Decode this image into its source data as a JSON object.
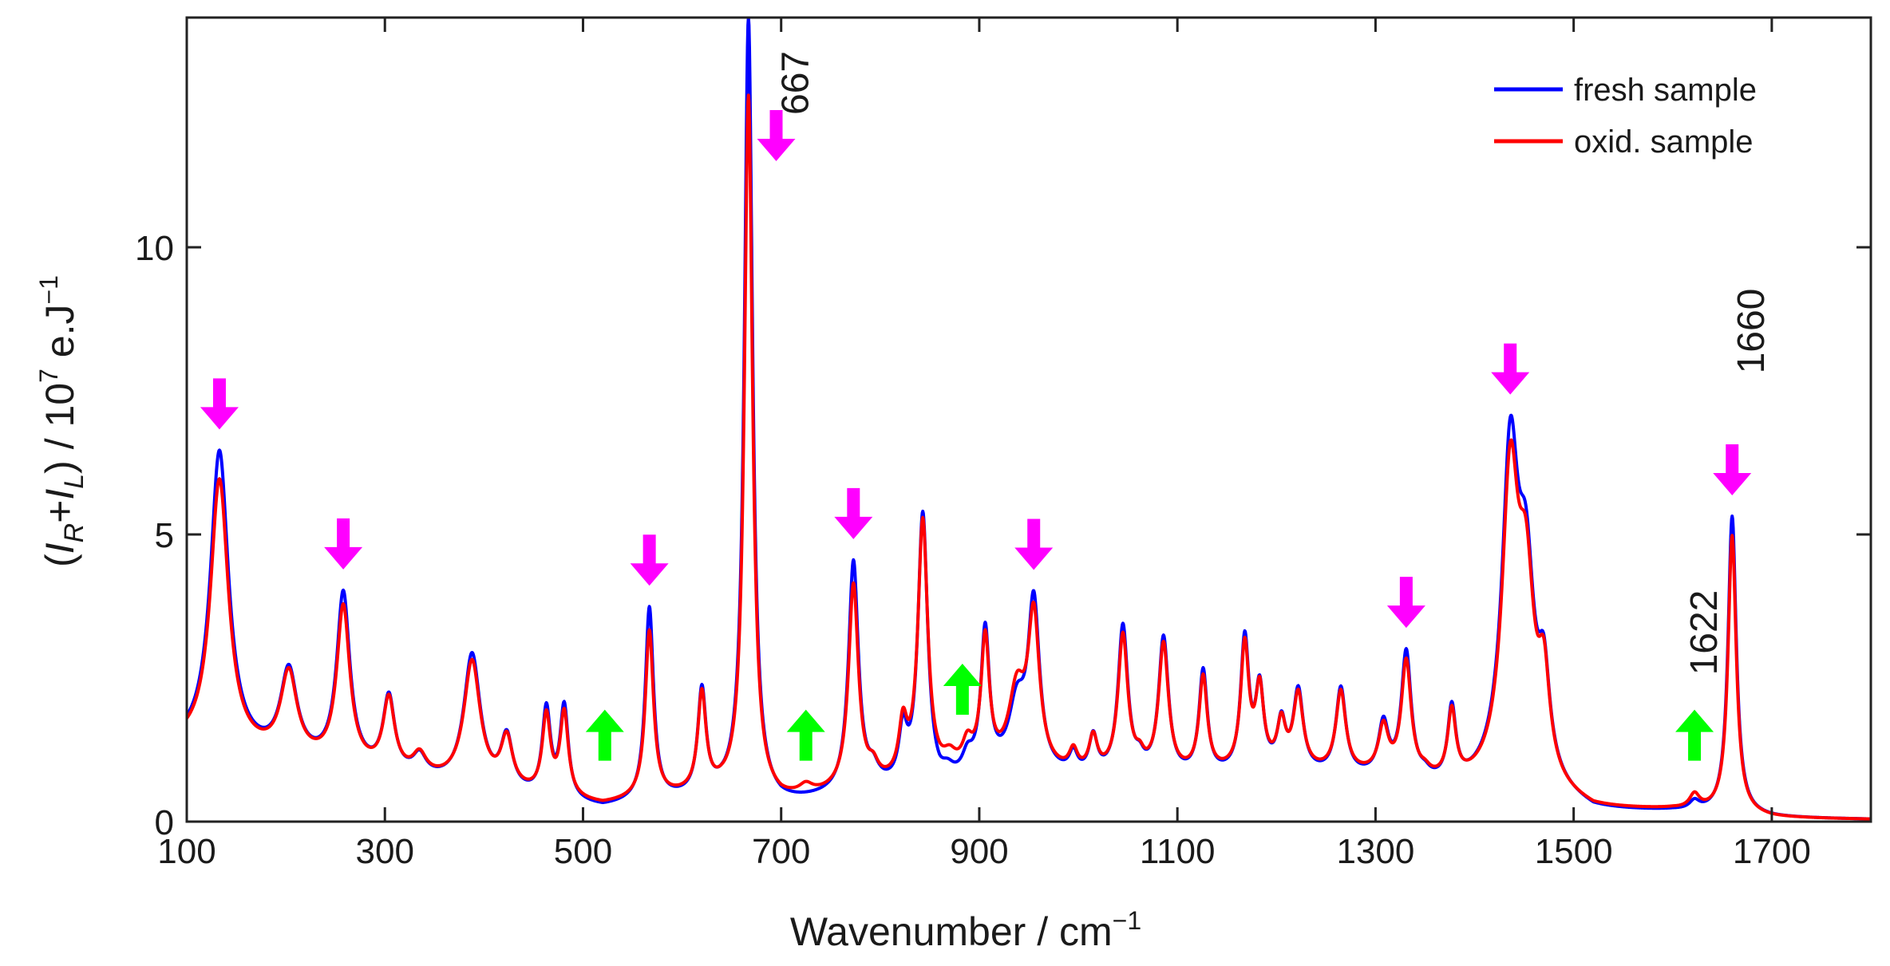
{
  "chart_data": {
    "type": "line",
    "title": "",
    "xlabel": "Wavenumber / cm",
    "xlabel_sup": "−1",
    "ylabel_parts": {
      "open": "(",
      "I": "I",
      "R": "R",
      "plus": "+",
      "I2": "I",
      "L": "L",
      "rest": ") / 10",
      "pow": "7",
      "unit": " e.J",
      "unit_sup": "−1"
    },
    "xlim": [
      100,
      1800
    ],
    "ylim": [
      0,
      14
    ],
    "xticks": [
      100,
      300,
      500,
      700,
      900,
      1100,
      1300,
      1500,
      1700
    ],
    "yticks": [
      0,
      5,
      10
    ],
    "grid": false,
    "legend_position": "top-right",
    "baseline": {
      "fresh": [
        [
          100,
          1.3
        ],
        [
          500,
          0.25
        ],
        [
          520,
          0.2
        ],
        [
          560,
          0.3
        ],
        [
          600,
          0.35
        ],
        [
          640,
          0.4
        ],
        [
          700,
          0.25
        ],
        [
          800,
          0.5
        ],
        [
          860,
          0.4
        ],
        [
          900,
          0.8
        ],
        [
          1000,
          0.7
        ],
        [
          1100,
          0.7
        ],
        [
          1200,
          0.8
        ],
        [
          1300,
          0.7
        ],
        [
          1380,
          0.5
        ],
        [
          1420,
          0.6
        ],
        [
          1480,
          0.4
        ],
        [
          1520,
          0.15
        ],
        [
          1600,
          0.15
        ],
        [
          1700,
          0.05
        ],
        [
          1800,
          0.03
        ]
      ],
      "oxid": [
        [
          100,
          1.3
        ],
        [
          500,
          0.3
        ],
        [
          520,
          0.25
        ],
        [
          560,
          0.35
        ],
        [
          600,
          0.4
        ],
        [
          640,
          0.45
        ],
        [
          700,
          0.3
        ],
        [
          800,
          0.55
        ],
        [
          860,
          0.65
        ],
        [
          900,
          0.85
        ],
        [
          1000,
          0.75
        ],
        [
          1100,
          0.75
        ],
        [
          1200,
          0.85
        ],
        [
          1300,
          0.75
        ],
        [
          1380,
          0.55
        ],
        [
          1420,
          0.6
        ],
        [
          1480,
          0.4
        ],
        [
          1520,
          0.18
        ],
        [
          1600,
          0.18
        ],
        [
          1700,
          0.05
        ],
        [
          1800,
          0.03
        ]
      ]
    },
    "series": [
      {
        "name": "fresh sample",
        "color": "#0000ff",
        "peaks": [
          [
            133,
            5.2,
            11
          ],
          [
            203,
            1.5,
            10
          ],
          [
            258,
            3.0,
            8
          ],
          [
            304,
            1.3,
            7
          ],
          [
            335,
            0.35,
            8
          ],
          [
            388,
            2.3,
            10
          ],
          [
            423,
            0.9,
            7
          ],
          [
            463,
            1.5,
            5
          ],
          [
            481,
            1.6,
            5
          ],
          [
            567,
            3.35,
            5
          ],
          [
            620,
            1.8,
            5
          ],
          [
            667,
            13.6,
            5
          ],
          [
            773,
            4.0,
            6
          ],
          [
            793,
            0.25,
            6
          ],
          [
            823,
            0.9,
            5
          ],
          [
            843,
            4.8,
            6
          ],
          [
            868,
            0.2,
            8
          ],
          [
            888,
            0.3,
            6
          ],
          [
            906,
            2.4,
            5
          ],
          [
            938,
            1.1,
            10
          ],
          [
            955,
            2.9,
            7
          ],
          [
            995,
            0.35,
            5
          ],
          [
            1015,
            0.65,
            5
          ],
          [
            1045,
            2.6,
            6
          ],
          [
            1062,
            0.2,
            5
          ],
          [
            1086,
            2.4,
            6
          ],
          [
            1126,
            1.8,
            5
          ],
          [
            1168,
            2.3,
            5
          ],
          [
            1183,
            1.4,
            5
          ],
          [
            1205,
            0.8,
            5
          ],
          [
            1222,
            1.4,
            6
          ],
          [
            1265,
            1.5,
            6
          ],
          [
            1308,
            0.9,
            6
          ],
          [
            1331,
            2.2,
            6
          ],
          [
            1350,
            0.1,
            6
          ],
          [
            1377,
            1.3,
            5
          ],
          [
            1436,
            5.5,
            10
          ],
          [
            1452,
            3.2,
            10
          ],
          [
            1470,
            1.6,
            7
          ],
          [
            1622,
            0.15,
            6
          ],
          [
            1660,
            5.2,
            5
          ]
        ]
      },
      {
        "name": "oxid. sample",
        "color": "#ff0000",
        "peaks": [
          [
            133,
            4.7,
            11
          ],
          [
            203,
            1.45,
            10
          ],
          [
            258,
            2.75,
            8
          ],
          [
            304,
            1.25,
            7
          ],
          [
            335,
            0.35,
            8
          ],
          [
            388,
            2.15,
            10
          ],
          [
            423,
            0.85,
            7
          ],
          [
            463,
            1.35,
            5
          ],
          [
            481,
            1.45,
            5
          ],
          [
            567,
            2.9,
            5
          ],
          [
            620,
            1.7,
            5
          ],
          [
            667,
            12.2,
            5
          ],
          [
            725,
            0.15,
            8
          ],
          [
            773,
            3.55,
            6
          ],
          [
            793,
            0.25,
            6
          ],
          [
            823,
            0.9,
            5
          ],
          [
            843,
            4.5,
            6
          ],
          [
            870,
            0.25,
            8
          ],
          [
            888,
            0.4,
            6
          ],
          [
            906,
            2.2,
            5
          ],
          [
            938,
            1.3,
            10
          ],
          [
            955,
            2.6,
            7
          ],
          [
            995,
            0.35,
            5
          ],
          [
            1015,
            0.6,
            5
          ],
          [
            1045,
            2.4,
            6
          ],
          [
            1062,
            0.2,
            5
          ],
          [
            1086,
            2.25,
            6
          ],
          [
            1126,
            1.65,
            5
          ],
          [
            1168,
            2.15,
            5
          ],
          [
            1183,
            1.35,
            5
          ],
          [
            1205,
            0.75,
            5
          ],
          [
            1222,
            1.3,
            6
          ],
          [
            1265,
            1.4,
            6
          ],
          [
            1308,
            0.8,
            6
          ],
          [
            1331,
            2.0,
            6
          ],
          [
            1350,
            0.1,
            6
          ],
          [
            1377,
            1.2,
            5
          ],
          [
            1436,
            5.1,
            10
          ],
          [
            1452,
            3.1,
            10
          ],
          [
            1470,
            1.6,
            7
          ],
          [
            1622,
            0.25,
            6
          ],
          [
            1660,
            4.85,
            5
          ]
        ]
      }
    ],
    "arrows": [
      {
        "x": 133,
        "direction": "down",
        "color": "#ff00ff"
      },
      {
        "x": 258,
        "direction": "down",
        "color": "#ff00ff"
      },
      {
        "x": 567,
        "direction": "down",
        "color": "#ff00ff"
      },
      {
        "x": 695,
        "direction": "down",
        "color": "#ff00ff"
      },
      {
        "x": 773,
        "direction": "down",
        "color": "#ff00ff"
      },
      {
        "x": 955,
        "direction": "down",
        "color": "#ff00ff"
      },
      {
        "x": 1331,
        "direction": "down",
        "color": "#ff00ff"
      },
      {
        "x": 1436,
        "direction": "down",
        "color": "#ff00ff"
      },
      {
        "x": 1660,
        "direction": "down",
        "color": "#ff00ff"
      },
      {
        "x": 522,
        "direction": "up",
        "color": "#00ff00"
      },
      {
        "x": 725,
        "direction": "up",
        "color": "#00ff00"
      },
      {
        "x": 883,
        "direction": "up",
        "color": "#00ff00"
      },
      {
        "x": 1622,
        "direction": "up",
        "color": "#00ff00"
      }
    ],
    "annotations": [
      {
        "text": "667",
        "x": 667
      },
      {
        "text": "1622",
        "x": 1622
      },
      {
        "text": "1660",
        "x": 1660
      }
    ]
  }
}
